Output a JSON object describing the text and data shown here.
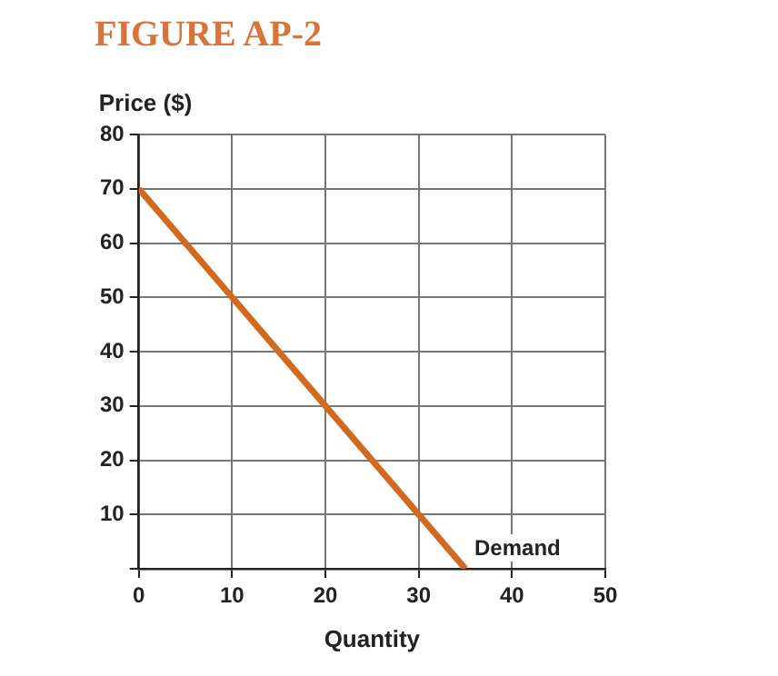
{
  "chart_data": {
    "type": "line",
    "title": "FIGURE AP-2",
    "xlabel": "Quantity",
    "ylabel": "Price ($)",
    "x": [
      0,
      35
    ],
    "series": [
      {
        "name": "Demand",
        "color": "#d2691e",
        "values": [
          70,
          0
        ]
      }
    ],
    "xlim": [
      0,
      50
    ],
    "xticks": [
      0,
      10,
      20,
      30,
      40,
      50
    ],
    "ylim": [
      0,
      80
    ],
    "yticks": [
      {
        "value": 0,
        "label": null
      },
      10,
      20,
      30,
      40,
      50,
      60,
      70,
      80
    ],
    "grid": true,
    "legend": false,
    "marker": "none",
    "line_style": "solid"
  }
}
